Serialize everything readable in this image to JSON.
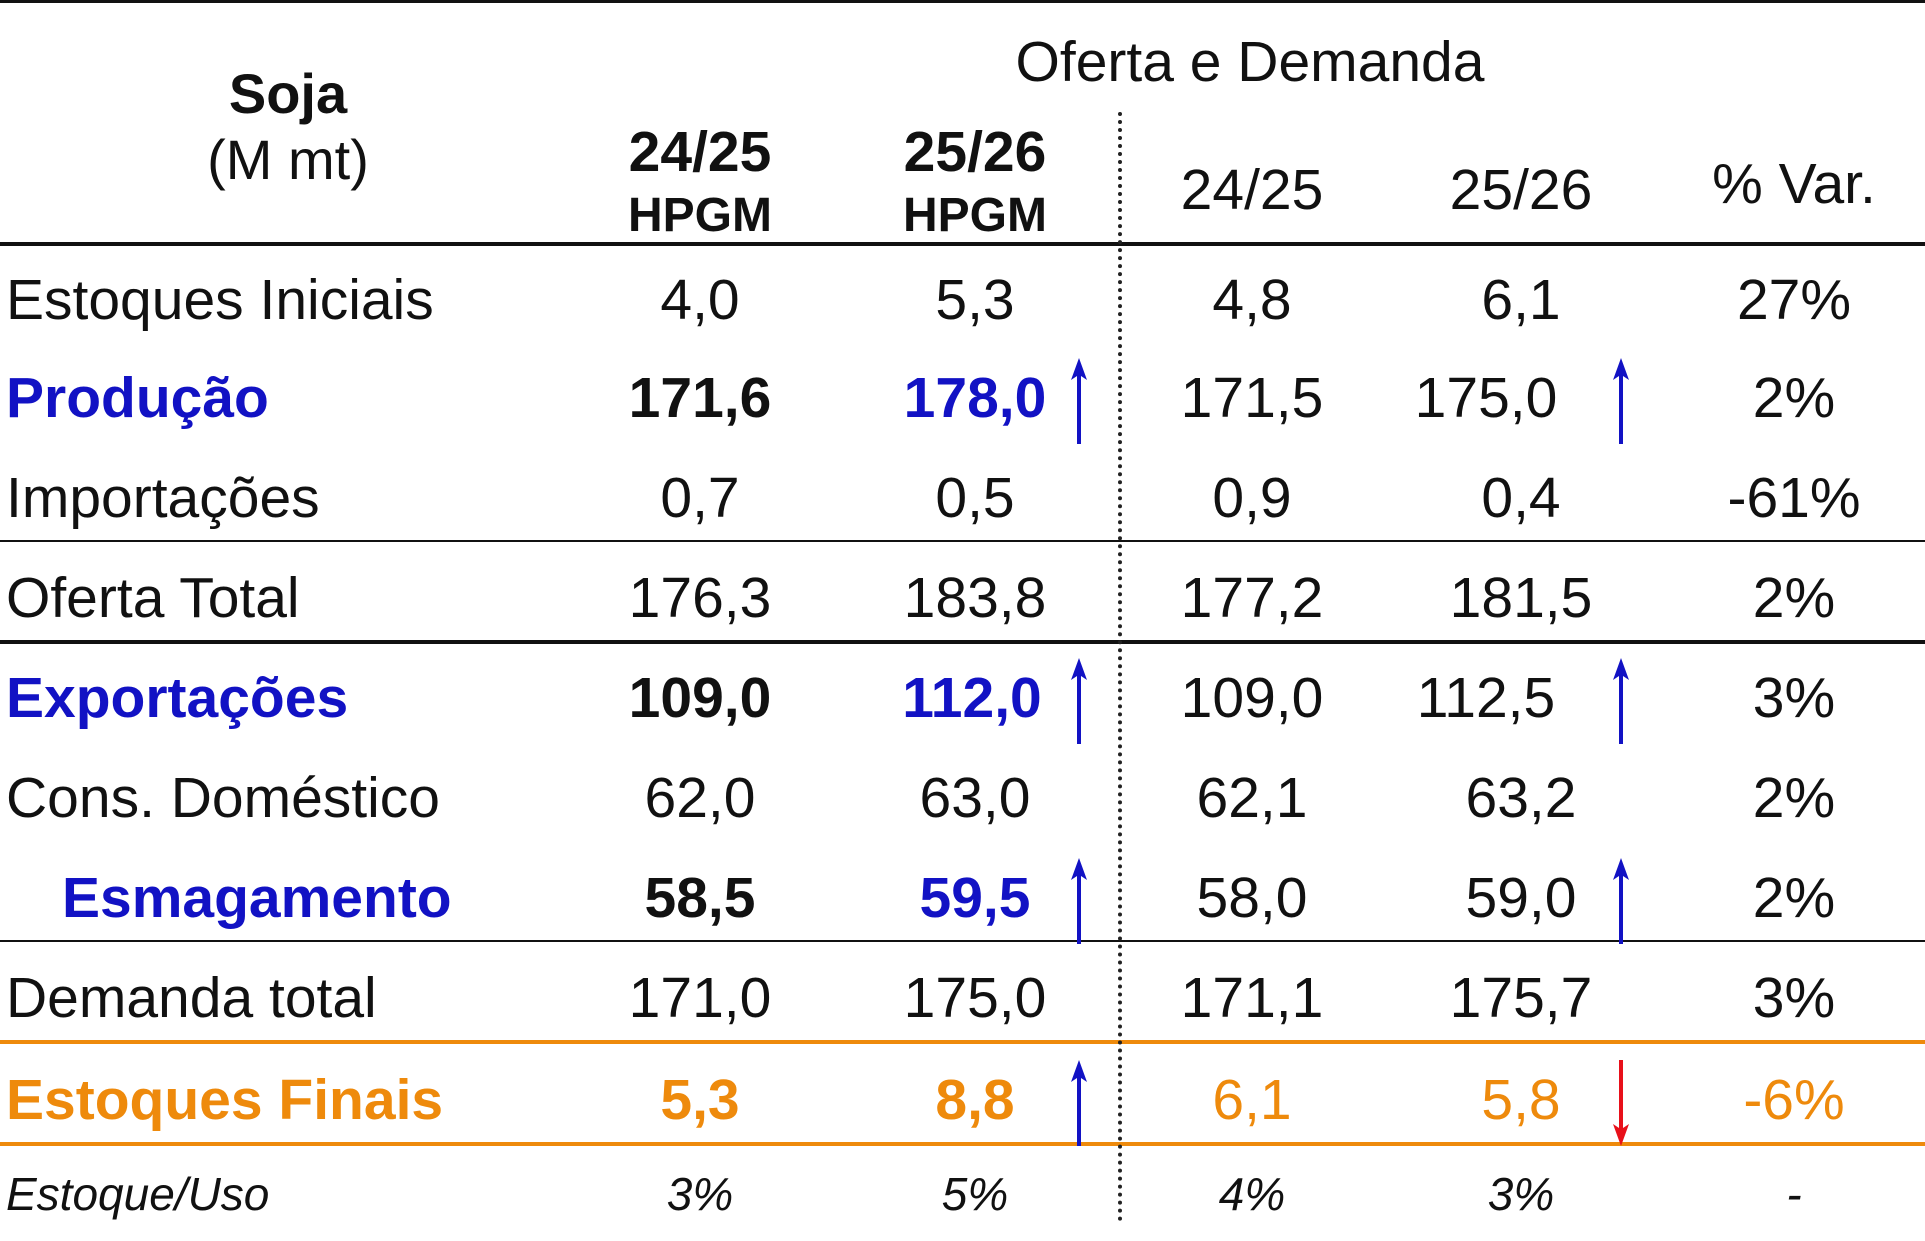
{
  "header": {
    "title": "Soja",
    "unit": "(M mt)",
    "group_title": "Oferta e Demanda",
    "col1_line1": "24/25",
    "col1_line2": "HPGM",
    "col2_line1": "25/26",
    "col2_line2": "HPGM",
    "col3": "24/25",
    "col4": "25/26",
    "col5": "% Var."
  },
  "colors": {
    "blue": "#1212c4",
    "orange": "#ee8a0c",
    "red": "#e8101a",
    "text": "#111111"
  },
  "rows": [
    {
      "label": "Estoques Iniciais",
      "v1": "4,0",
      "v2": "5,3",
      "v3": "4,8",
      "v4": "6,1",
      "v5": "27%"
    },
    {
      "label": "Produção",
      "v1": "171,6",
      "v2": "178,0",
      "v3": "171,5",
      "v4": "175,0",
      "v5": "2%",
      "arrow2": "up-arrow-icon",
      "arrow4": "up-arrow-icon"
    },
    {
      "label": "Importações",
      "v1": "0,7",
      "v2": "0,5",
      "v3": "0,9",
      "v4": "0,4",
      "v5": "-61%"
    },
    {
      "label": "Oferta Total",
      "v1": "176,3",
      "v2": "183,8",
      "v3": "177,2",
      "v4": "181,5",
      "v5": "2%"
    },
    {
      "label": "Exportações",
      "v1": "109,0",
      "v2": "112,0",
      "v3": "109,0",
      "v4": "112,5",
      "v5": "3%",
      "arrow2": "up-arrow-icon",
      "arrow4": "up-arrow-icon"
    },
    {
      "label": "Cons. Doméstico",
      "v1": "62,0",
      "v2": "63,0",
      "v3": "62,1",
      "v4": "63,2",
      "v5": "2%"
    },
    {
      "label": "Esmagamento",
      "v1": "58,5",
      "v2": "59,5",
      "v3": "58,0",
      "v4": "59,0",
      "v5": "2%",
      "arrow2": "up-arrow-icon",
      "arrow4": "up-arrow-icon"
    },
    {
      "label": "Demanda total",
      "v1": "171,0",
      "v2": "175,0",
      "v3": "171,1",
      "v4": "175,7",
      "v5": "3%"
    },
    {
      "label": "Estoques Finais",
      "v1": "5,3",
      "v2": "8,8",
      "v3": "6,1",
      "v4": "5,8",
      "v5": "-6%",
      "arrow2": "up-arrow-icon",
      "arrow4": "down-arrow-icon"
    },
    {
      "label": "Estoque/Uso",
      "v1": "3%",
      "v2": "5%",
      "v3": "4%",
      "v4": "3%",
      "v5": "-"
    }
  ]
}
